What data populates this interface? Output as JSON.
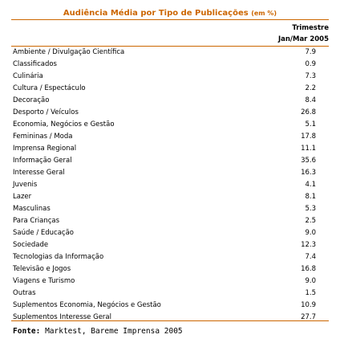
{
  "title": {
    "text": "Audiência Média por Tipo de Publicações",
    "unit": "(em %)"
  },
  "column_header": {
    "line1": "Trimestre",
    "line2": "Jan/Mar 2005"
  },
  "rows": [
    {
      "label": "Ambiente / Divulgação Científica",
      "value": "7.9"
    },
    {
      "label": "Classificados",
      "value": "0.9"
    },
    {
      "label": "Culinária",
      "value": "7.3"
    },
    {
      "label": "Cultura / Espectáculo",
      "value": "2.2"
    },
    {
      "label": "Decoração",
      "value": "8.4"
    },
    {
      "label": "Desporto / Veículos",
      "value": "26.8"
    },
    {
      "label": "Economia, Negócios e Gestão",
      "value": "5.1"
    },
    {
      "label": "Femininas / Moda",
      "value": "17.8"
    },
    {
      "label": "Imprensa Regional",
      "value": "11.1"
    },
    {
      "label": "Informação Geral",
      "value": "35.6"
    },
    {
      "label": "Interesse Geral",
      "value": "16.3"
    },
    {
      "label": "Juvenis",
      "value": "4.1"
    },
    {
      "label": "Lazer",
      "value": "8.1"
    },
    {
      "label": "Masculinas",
      "value": "5.3"
    },
    {
      "label": "Para Crianças",
      "value": "2.5"
    },
    {
      "label": "Saúde / Educação",
      "value": "9.0"
    },
    {
      "label": "Sociedade",
      "value": "12.3"
    },
    {
      "label": "Tecnologias da Informação",
      "value": "7.4"
    },
    {
      "label": "Televisão e Jogos",
      "value": "16.8"
    },
    {
      "label": "Viagens e Turismo",
      "value": "9.0"
    },
    {
      "label": "Outras",
      "value": "1.5"
    },
    {
      "label": "Suplementos Economia, Negócios e Gestão",
      "value": "10.9"
    },
    {
      "label": "Suplementos Interesse Geral",
      "value": "27.7"
    }
  ],
  "source": {
    "label": "Fonte:",
    "text": "Marktest, Bareme Imprensa 2005"
  },
  "colors": {
    "accent": "#cc6600",
    "text": "#000000",
    "background": "#ffffff"
  }
}
